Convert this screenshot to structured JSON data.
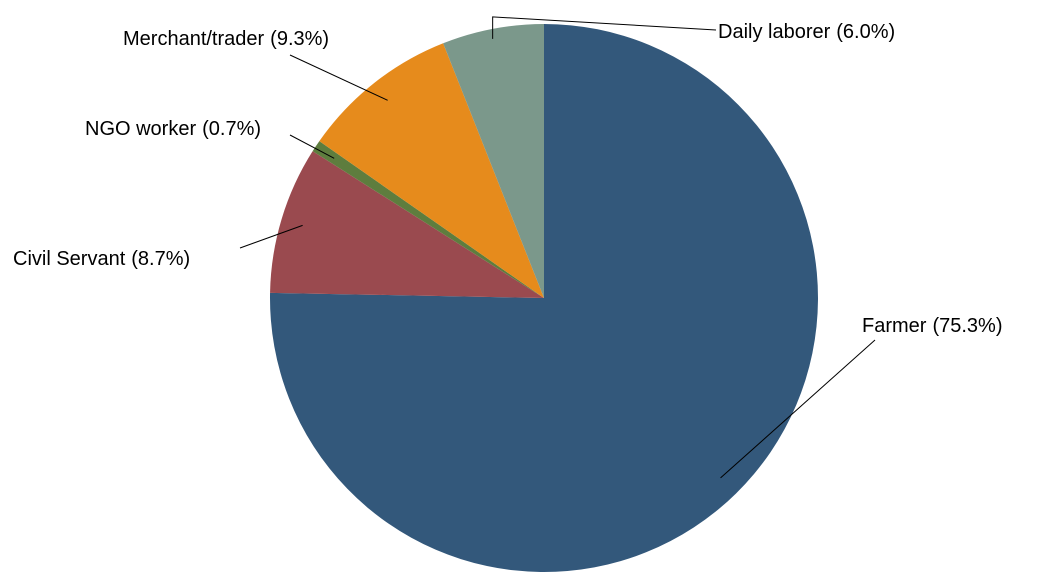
{
  "chart_data": {
    "type": "pie",
    "categories": [
      "Farmer",
      "Civil Servant",
      "NGO worker",
      "Merchant/trader",
      "Daily laborer"
    ],
    "values": [
      75.3,
      8.7,
      0.7,
      9.3,
      6.0
    ],
    "value_labels": [
      "(75.3%)",
      "(8.7%)",
      "(0.7%)",
      "(9.3%)",
      "(6.0%)"
    ],
    "colors": [
      "#33587b",
      "#9a4a4f",
      "#5e7d3e",
      "#e68b1c",
      "#7b988b"
    ]
  }
}
